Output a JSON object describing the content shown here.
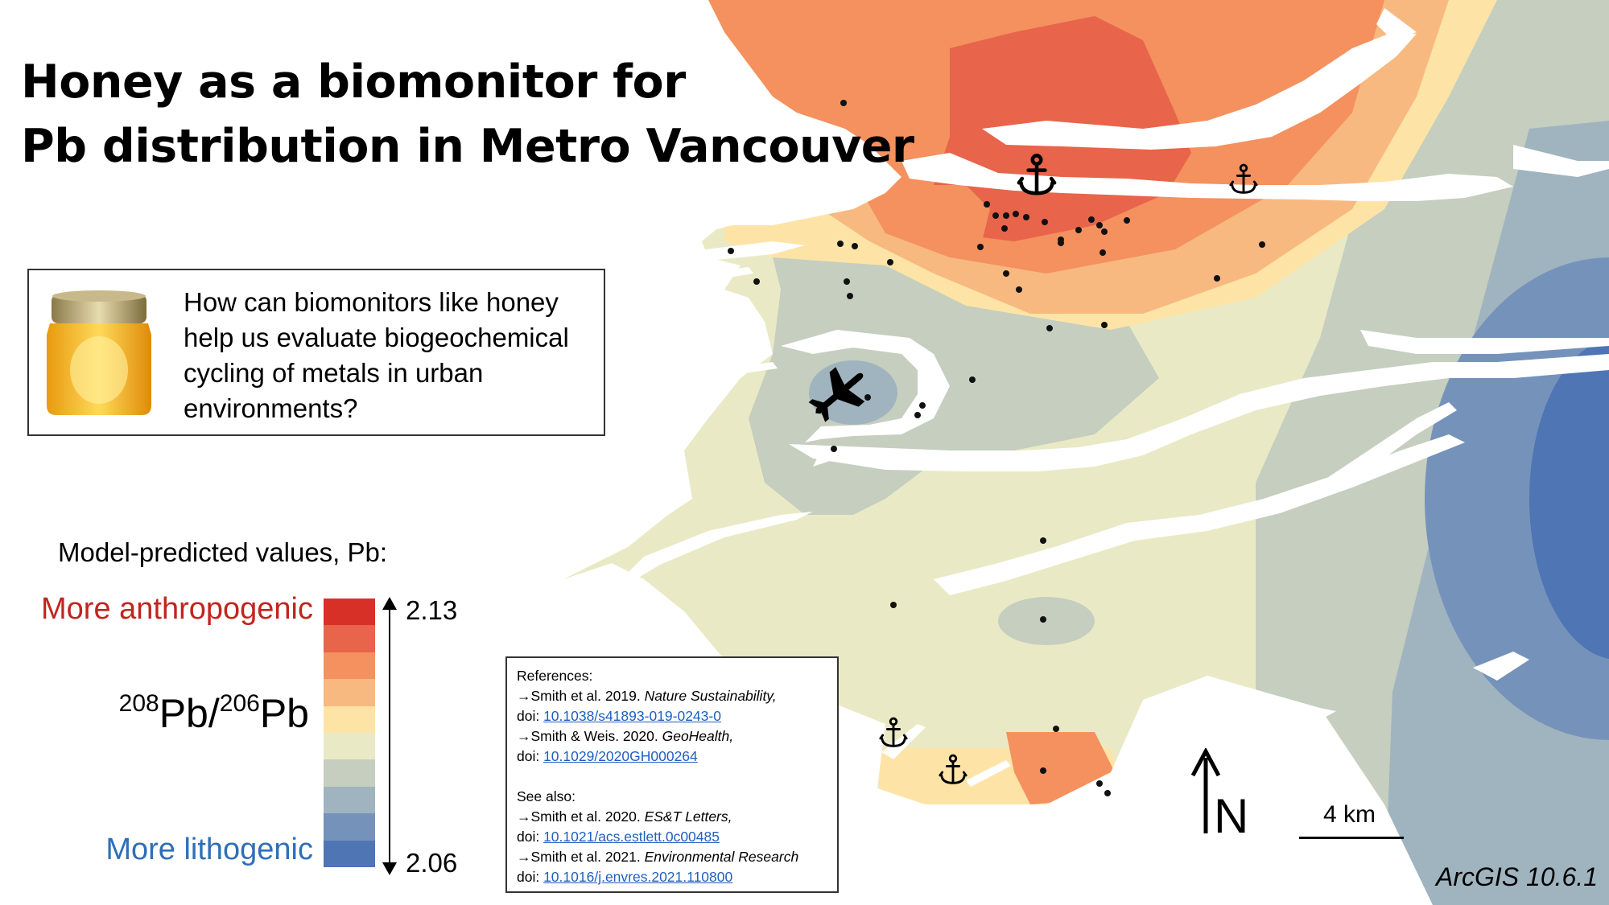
{
  "title_lines": [
    "Honey as a biomonitor for",
    "Pb distribution in Metro Vancouver"
  ],
  "question": "How can biomonitors like honey help us evaluate biogeochemical cycling of metals in urban environments?",
  "legend": {
    "title": "Model-predicted values, Pb:",
    "more_label": "More anthropogenic",
    "less_label": "More lithogenic",
    "ratio": {
      "iso1": "208",
      "pb1": "Pb/",
      "iso2": "206",
      "pb2": "Pb"
    },
    "max": "2.13",
    "min": "2.06",
    "colors": [
      "#d73027",
      "#e8644a",
      "#f4915f",
      "#f8b981",
      "#fde4a6",
      "#e9eac5",
      "#c5cebf",
      "#9fb4bf",
      "#7593ba",
      "#4f75b4"
    ]
  },
  "references": {
    "heading": "References:",
    "items": [
      {
        "text": "→Smith et al. 2019. ",
        "journal": "Nature Sustainability,",
        "doi_prefix": "doi: ",
        "doi": "10.1038/s41893-019-0243-0"
      },
      {
        "text": "→Smith & Weis. 2020. ",
        "journal": "GeoHealth,",
        "doi_prefix": "doi: ",
        "doi": "10.1029/2020GH000264"
      }
    ],
    "see_also_heading": "See also:",
    "see_also": [
      {
        "text": "→Smith et al. 2020. ",
        "journal": "ES&T Letters,",
        "doi_prefix": "doi: ",
        "doi": "10.1021/acs.estlett.0c00485"
      },
      {
        "text": "→Smith et al. 2021. ",
        "journal": "Environmental Research",
        "doi_prefix": "doi: ",
        "doi": "10.1016/j.envres.2021.110800"
      }
    ]
  },
  "map": {
    "north_label": "N",
    "scale_label": "4 km",
    "software": "ArcGIS 10.6.1",
    "icons": [
      "airplane-icon",
      "anchor-icon",
      "honey-jar-icon",
      "north-arrow-icon"
    ]
  }
}
